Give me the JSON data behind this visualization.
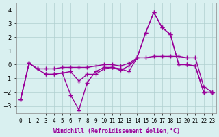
{
  "xlabel": "Windchill (Refroidissement éolien,°C)",
  "x": [
    0,
    1,
    2,
    3,
    4,
    5,
    6,
    7,
    8,
    9,
    10,
    11,
    12,
    13,
    14,
    15,
    16,
    17,
    18,
    19,
    20,
    21,
    22,
    23
  ],
  "line1": [
    -2.5,
    0.1,
    -0.3,
    -0.7,
    -0.7,
    -0.6,
    -2.2,
    -3.3,
    -1.3,
    -0.5,
    -0.2,
    -0.2,
    -0.3,
    -0.5,
    0.5,
    2.3,
    3.8,
    2.7,
    2.2,
    0.0,
    0.0,
    -0.1,
    -2.0,
    -2.0
  ],
  "line2": [
    -2.5,
    0.1,
    -0.3,
    -0.7,
    -0.7,
    -0.6,
    -0.5,
    -1.2,
    -0.7,
    -0.7,
    -0.3,
    -0.2,
    -0.4,
    -0.1,
    0.5,
    2.3,
    3.8,
    2.7,
    2.2,
    0.0,
    0.0,
    -0.1,
    -2.0,
    -2.0
  ],
  "line3": [
    -2.5,
    0.1,
    -0.3,
    -0.3,
    -0.3,
    -0.2,
    -0.2,
    -0.2,
    -0.2,
    -0.1,
    0.0,
    0.0,
    -0.1,
    0.1,
    0.5,
    0.5,
    0.6,
    0.6,
    0.6,
    0.6,
    0.5,
    0.5,
    -1.6,
    -2.0
  ],
  "color": "#990099",
  "bg_color": "#d9f0f0",
  "grid_color": "#b0d0d0",
  "ylim": [
    -3.5,
    4.5
  ],
  "yticks": [
    -3,
    -2,
    -1,
    0,
    1,
    2,
    3,
    4
  ],
  "xlim": [
    -0.5,
    23.5
  ]
}
